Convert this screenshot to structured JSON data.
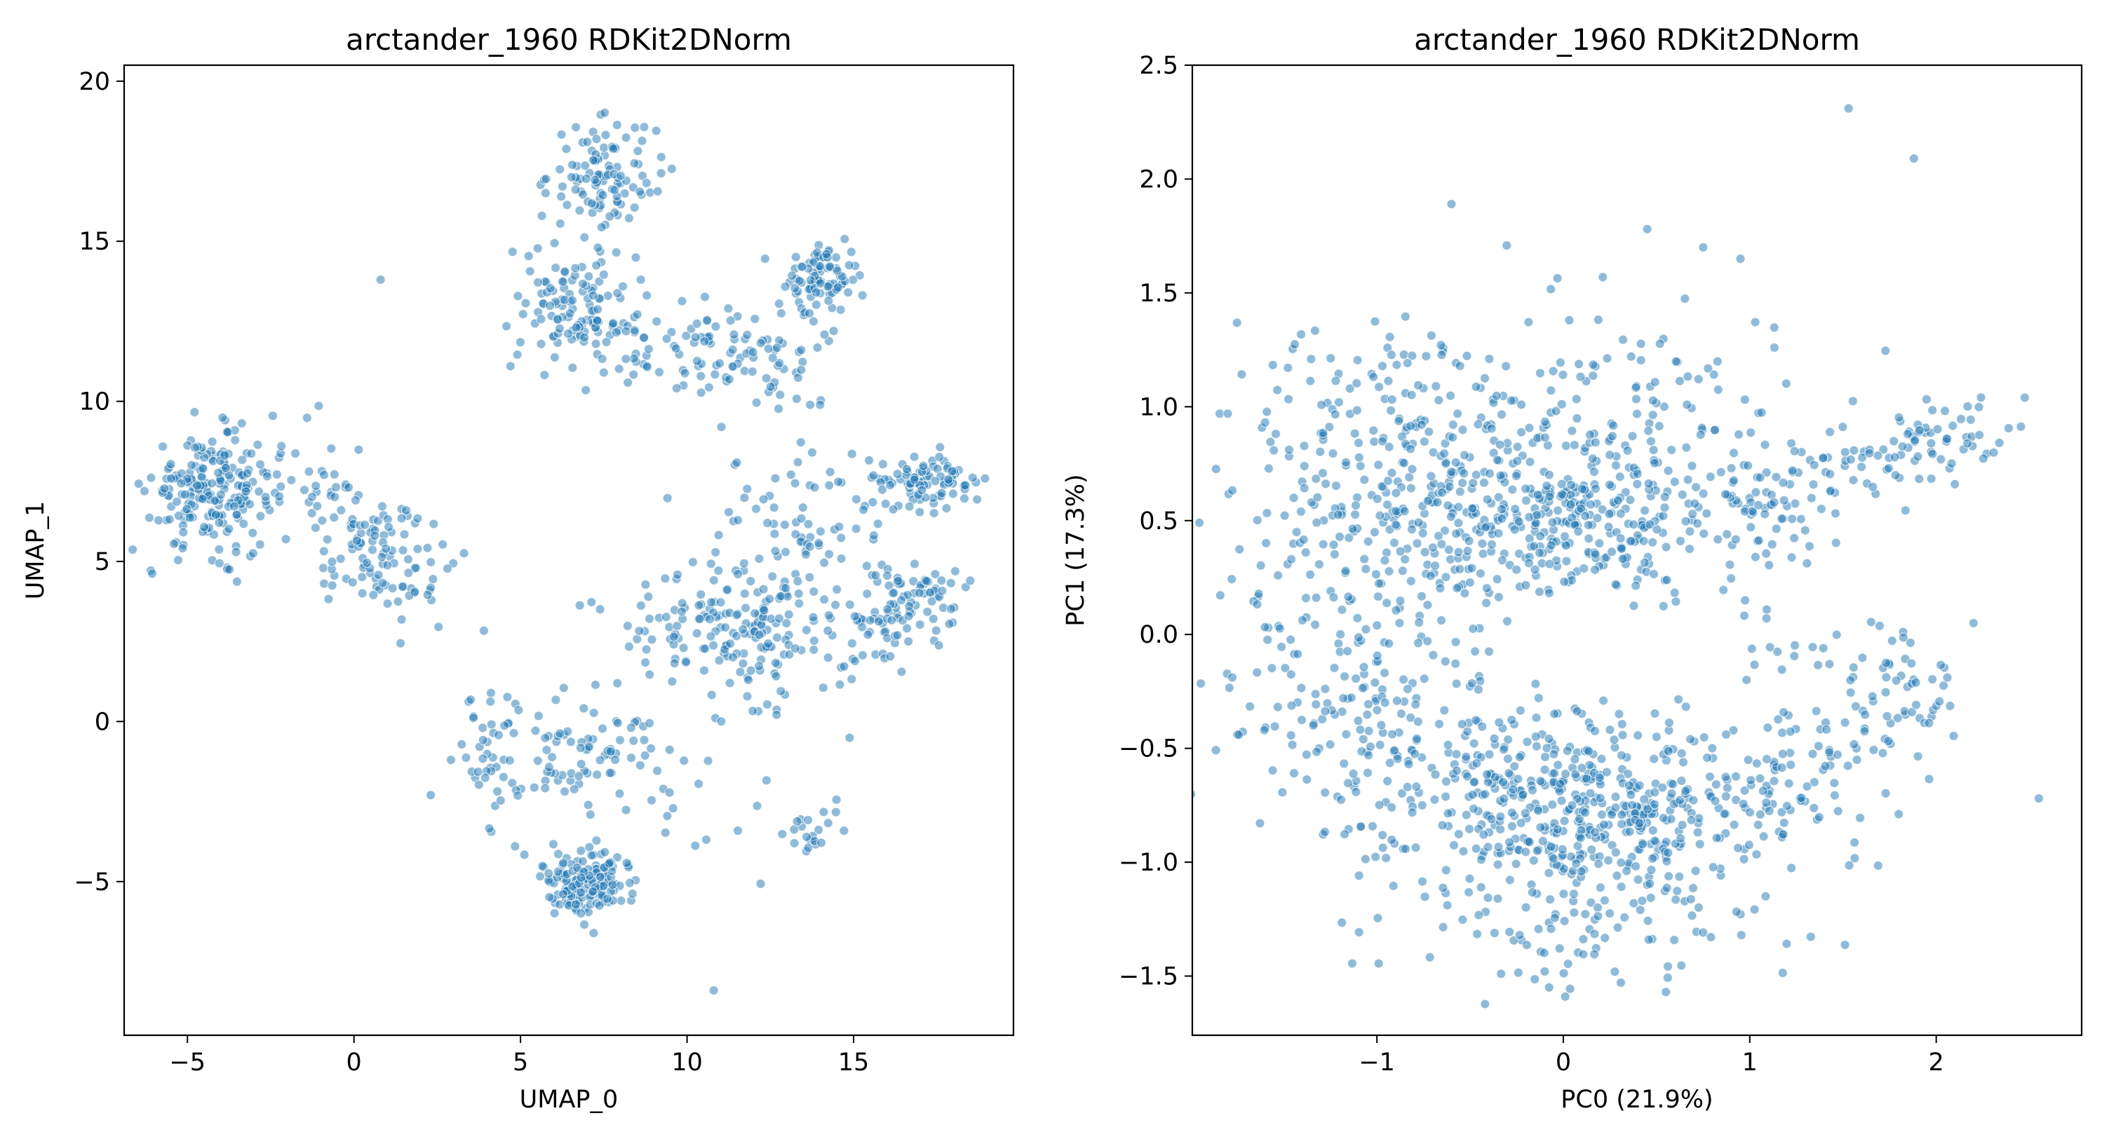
{
  "chart_data": [
    {
      "type": "scatter",
      "title": "arctander_1960 RDKit2DNorm",
      "xlabel": "UMAP_0",
      "ylabel": "UMAP_1",
      "xlim": [
        -6.9,
        19.8
      ],
      "ylim": [
        -9.8,
        20.5
      ],
      "xticks": [
        -5,
        0,
        5,
        10,
        15
      ],
      "xtick_labels": [
        "−5",
        "0",
        "5",
        "10",
        "15"
      ],
      "yticks": [
        -5,
        0,
        5,
        10,
        15,
        20
      ],
      "ytick_labels": [
        "−5",
        "0",
        "5",
        "10",
        "15",
        "20"
      ],
      "point_color": "#1f77b4",
      "point_alpha": 0.5,
      "grid": false,
      "legend": "none",
      "clusters": [
        {
          "cx": -4.3,
          "cy": 7.2,
          "sx": 0.9,
          "sy": 0.9,
          "n": 210
        },
        {
          "cx": -1.5,
          "cy": 7.3,
          "sx": 1.2,
          "sy": 1.0,
          "n": 40
        },
        {
          "cx": 0.8,
          "cy": 5.3,
          "sx": 1.0,
          "sy": 0.8,
          "n": 90
        },
        {
          "cx": 2.2,
          "cy": 4.0,
          "sx": 0.9,
          "sy": 0.6,
          "n": 15
        },
        {
          "cx": 7.5,
          "cy": 17.0,
          "sx": 0.8,
          "sy": 0.9,
          "n": 110
        },
        {
          "cx": 6.5,
          "cy": 13.0,
          "sx": 0.9,
          "sy": 0.9,
          "n": 110
        },
        {
          "cx": 8.3,
          "cy": 11.8,
          "sx": 0.9,
          "sy": 0.8,
          "n": 30
        },
        {
          "cx": 11.0,
          "cy": 11.6,
          "sx": 1.1,
          "sy": 0.8,
          "n": 70
        },
        {
          "cx": 14.1,
          "cy": 13.9,
          "sx": 0.6,
          "sy": 0.6,
          "n": 90
        },
        {
          "cx": 13.5,
          "cy": 11.0,
          "sx": 0.7,
          "sy": 0.7,
          "n": 25
        },
        {
          "cx": 17.2,
          "cy": 7.5,
          "sx": 0.7,
          "sy": 0.4,
          "n": 90
        },
        {
          "cx": 17.0,
          "cy": 3.8,
          "sx": 0.7,
          "sy": 0.7,
          "n": 60
        },
        {
          "cx": 13.5,
          "cy": 6.0,
          "sx": 1.5,
          "sy": 1.1,
          "n": 80
        },
        {
          "cx": 12.3,
          "cy": 2.6,
          "sx": 1.3,
          "sy": 1.1,
          "n": 130
        },
        {
          "cx": 9.5,
          "cy": 3.2,
          "sx": 1.3,
          "sy": 0.9,
          "n": 50
        },
        {
          "cx": 15.5,
          "cy": 3.2,
          "sx": 0.9,
          "sy": 0.8,
          "n": 40
        },
        {
          "cx": 7.0,
          "cy": -5.0,
          "sx": 0.7,
          "sy": 0.5,
          "n": 150
        },
        {
          "cx": 7.0,
          "cy": -1.0,
          "sx": 1.5,
          "sy": 1.1,
          "n": 90
        },
        {
          "cx": 4.0,
          "cy": -1.0,
          "sx": 0.7,
          "sy": 1.2,
          "n": 35
        },
        {
          "cx": 10.8,
          "cy": -2.5,
          "sx": 1.3,
          "sy": 1.4,
          "n": 20
        },
        {
          "cx": 13.8,
          "cy": -3.4,
          "sx": 0.5,
          "sy": 0.4,
          "n": 20
        }
      ],
      "outliers": [
        [
          0.8,
          13.8
        ],
        [
          10.8,
          -8.4
        ],
        [
          18.5,
          4.4
        ],
        [
          4.7,
          11.1
        ]
      ]
    },
    {
      "type": "scatter",
      "title": "arctander_1960 RDKit2DNorm",
      "xlabel": "PC0 (21.9%)",
      "ylabel": "PC1 (17.3%)",
      "xlim": [
        -1.99,
        2.78
      ],
      "ylim": [
        -1.76,
        2.5
      ],
      "xticks": [
        -1,
        0,
        1,
        2
      ],
      "xtick_labels": [
        "−1",
        "0",
        "1",
        "2"
      ],
      "yticks": [
        -1.5,
        -1.0,
        -0.5,
        0.0,
        0.5,
        1.0,
        1.5,
        2.0,
        2.5
      ],
      "ytick_labels": [
        "−1.5",
        "−1.0",
        "−0.5",
        "0.0",
        "0.5",
        "1.0",
        "1.5",
        "2.0",
        "2.5"
      ],
      "point_color": "#1f77b4",
      "point_alpha": 0.5,
      "grid": false,
      "legend": "none",
      "clusters": [
        {
          "cx": 0.0,
          "cy": 0.5,
          "sx": 0.6,
          "sy": 0.2,
          "n": 450
        },
        {
          "cx": -0.9,
          "cy": 0.9,
          "sx": 0.45,
          "sy": 0.25,
          "n": 170
        },
        {
          "cx": -1.2,
          "cy": 0.2,
          "sx": 0.35,
          "sy": 0.3,
          "n": 80
        },
        {
          "cx": 0.3,
          "cy": 0.95,
          "sx": 0.6,
          "sy": 0.25,
          "n": 120
        },
        {
          "cx": 0.2,
          "cy": -0.78,
          "sx": 0.55,
          "sy": 0.2,
          "n": 500
        },
        {
          "cx": -0.8,
          "cy": -0.5,
          "sx": 0.45,
          "sy": 0.3,
          "n": 150
        },
        {
          "cx": 0.0,
          "cy": -1.25,
          "sx": 0.55,
          "sy": 0.15,
          "n": 90
        },
        {
          "cx": -1.3,
          "cy": -0.2,
          "sx": 0.3,
          "sy": 0.25,
          "n": 50
        }
      ],
      "trails": [
        {
          "x0": 1.0,
          "x1": 2.4,
          "y0": 0.6,
          "y1": 0.95,
          "jitter": 0.08,
          "n": 110
        },
        {
          "x0": 1.0,
          "x1": 2.1,
          "y0": -0.6,
          "y1": -0.3,
          "jitter": 0.12,
          "n": 90
        },
        {
          "x0": 1.0,
          "x1": 2.0,
          "y0": -0.1,
          "y1": -0.1,
          "jitter": 0.1,
          "n": 30
        }
      ],
      "outliers": [
        [
          1.53,
          2.31
        ],
        [
          1.88,
          2.09
        ],
        [
          -0.6,
          1.89
        ],
        [
          0.45,
          1.78
        ],
        [
          0.75,
          1.7
        ],
        [
          0.95,
          1.65
        ],
        [
          2.55,
          -0.72
        ],
        [
          -1.8,
          0.97
        ],
        [
          2.2,
          0.05
        ],
        [
          2.1,
          0.66
        ],
        [
          -0.1,
          -1.48
        ],
        [
          0.55,
          -1.57
        ]
      ]
    }
  ]
}
